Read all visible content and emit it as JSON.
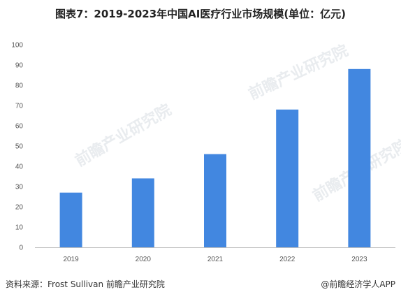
{
  "figure": {
    "title": "图表7：2019-2023年中国AI医疗行业市场规模(单位：亿元)",
    "source": "资料来源：Frost Sullivan 前瞻产业研究院",
    "brand": "@前瞻经济学人APP",
    "watermark": "前瞻产业研究院"
  },
  "chart_data": {
    "type": "bar",
    "title": "图表7：2019-2023年中国AI医疗行业市场规模(单位：亿元)",
    "xlabel": "",
    "ylabel": "",
    "categories": [
      "2019",
      "2020",
      "2021",
      "2022",
      "2023"
    ],
    "values": [
      27,
      34,
      46,
      68,
      88
    ],
    "ylim": [
      0,
      100
    ],
    "yticks": [
      0,
      10,
      20,
      30,
      40,
      50,
      60,
      70,
      80,
      90,
      100
    ],
    "grid": false,
    "legend": "none",
    "colors": {
      "bar": "#4287e0",
      "axis": "#bfbfbf"
    }
  }
}
